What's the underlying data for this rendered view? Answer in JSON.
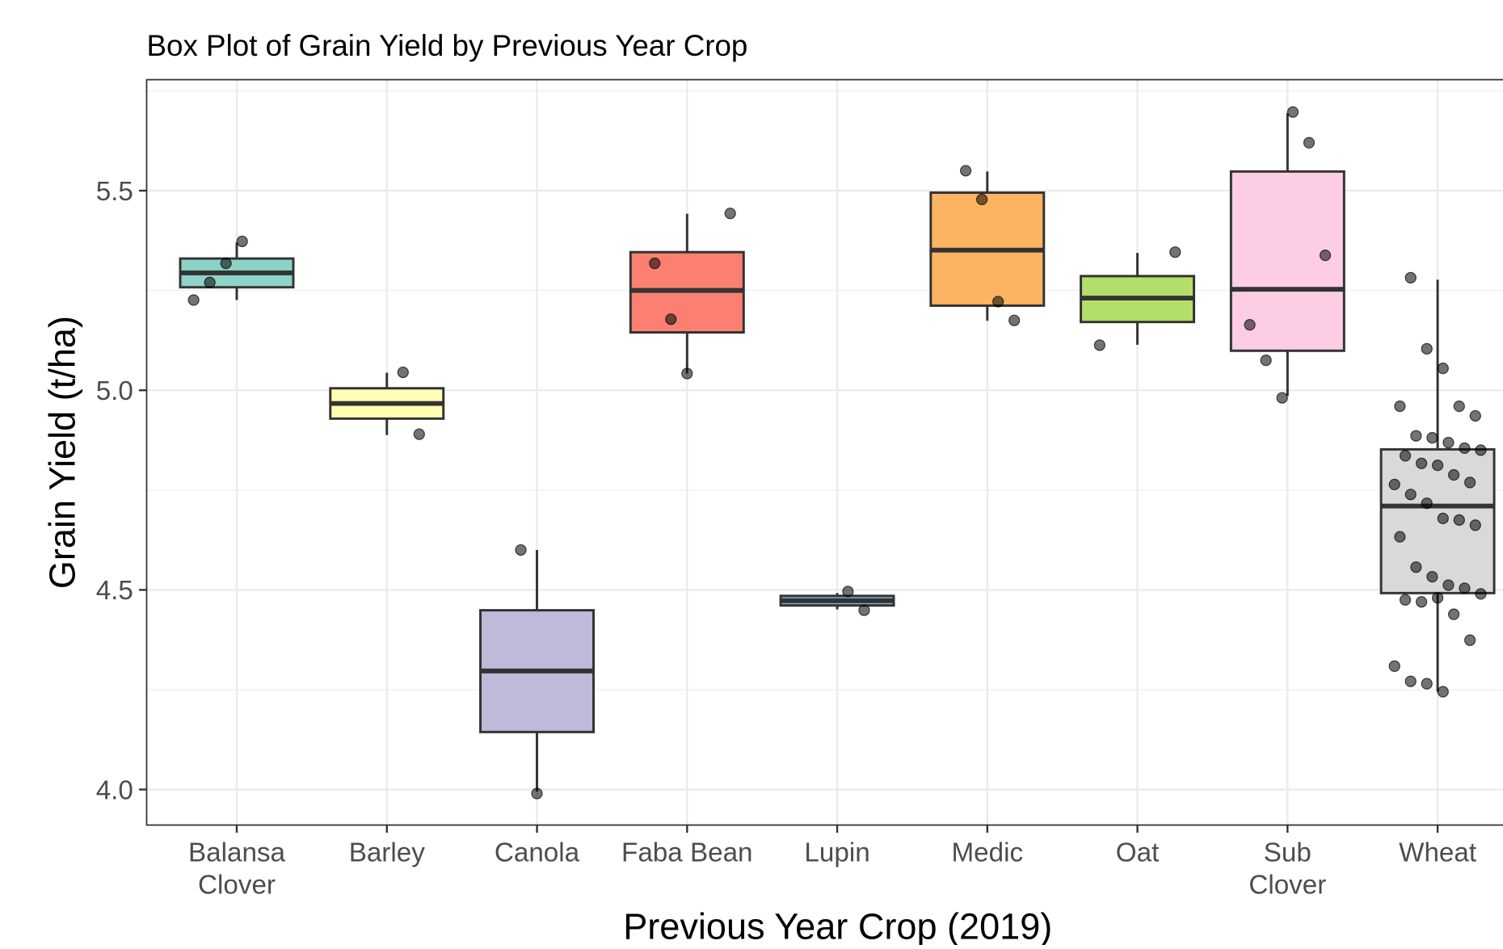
{
  "chart_data": {
    "type": "box",
    "title": "Box Plot of Grain Yield by Previous Year Crop",
    "x_label": "Previous Year Crop (2019)",
    "y_label": "Grain Yield (t/ha)",
    "categories": [
      "Balansa\nClover",
      "Barley",
      "Canola",
      "Faba Bean",
      "Lupin",
      "Medic",
      "Oat",
      "Sub\nClover",
      "Wheat"
    ],
    "ylim": [
      3.911,
      5.778
    ],
    "yticks": [
      {
        "value": 4.0,
        "label": "4.0"
      },
      4.5,
      {
        "value": 5.0,
        "label": "5.0"
      },
      5.5
    ],
    "grid": true,
    "boxes": [
      {
        "whisker_low": 5.226,
        "q1": 5.258,
        "median": 5.294,
        "q3": 5.33,
        "whisker_high": 5.37,
        "color": "#8dd3c7",
        "points": [
          5.226,
          5.27,
          5.318,
          5.373
        ]
      },
      {
        "whisker_low": 4.888,
        "q1": 4.929,
        "median": 4.967,
        "q3": 5.005,
        "whisker_high": 5.044,
        "color": "#ffffb3",
        "points": [
          5.045,
          4.89
        ]
      },
      {
        "whisker_low": 3.995,
        "q1": 4.144,
        "median": 4.297,
        "q3": 4.449,
        "whisker_high": 4.6,
        "color": "#bebada",
        "points": [
          4.6,
          3.99
        ]
      },
      {
        "whisker_low": 5.042,
        "q1": 5.145,
        "median": 5.25,
        "q3": 5.346,
        "whisker_high": 5.442,
        "color": "#fb8072",
        "points": [
          5.443,
          5.318,
          5.178,
          5.042
        ]
      },
      {
        "whisker_low": 4.451,
        "q1": 4.461,
        "median": 4.473,
        "q3": 4.485,
        "whisker_high": 4.492,
        "color": "#80b1d3",
        "points": [
          4.496,
          4.449
        ]
      },
      {
        "whisker_low": 5.174,
        "q1": 5.212,
        "median": 5.351,
        "q3": 5.495,
        "whisker_high": 5.548,
        "color": "#fdb462",
        "points": [
          5.55,
          5.478,
          5.222,
          5.175
        ]
      },
      {
        "whisker_low": 5.114,
        "q1": 5.171,
        "median": 5.231,
        "q3": 5.286,
        "whisker_high": 5.344,
        "color": "#b3de69",
        "points": [
          5.346,
          5.113
        ]
      },
      {
        "whisker_low": 4.986,
        "q1": 5.099,
        "median": 5.253,
        "q3": 5.548,
        "whisker_high": 5.694,
        "color": "#fccde5",
        "points": [
          5.697,
          5.62,
          5.338,
          5.164,
          5.075,
          4.981
        ]
      },
      {
        "whisker_low": 4.245,
        "q1": 4.492,
        "median": 4.71,
        "q3": 4.852,
        "whisker_high": 5.277,
        "color": "#d9d9d9",
        "points": [
          5.282,
          5.104,
          5.055,
          4.96,
          4.936,
          4.96,
          4.886,
          4.881,
          4.869,
          4.855,
          4.85,
          4.836,
          4.817,
          4.812,
          4.788,
          4.769,
          4.764,
          4.739,
          4.717,
          4.679,
          4.675,
          4.662,
          4.633,
          4.557,
          4.533,
          4.512,
          4.504,
          4.49,
          4.475,
          4.47,
          4.48,
          4.439,
          4.374,
          4.309,
          4.271,
          4.265,
          4.245
        ]
      }
    ]
  }
}
